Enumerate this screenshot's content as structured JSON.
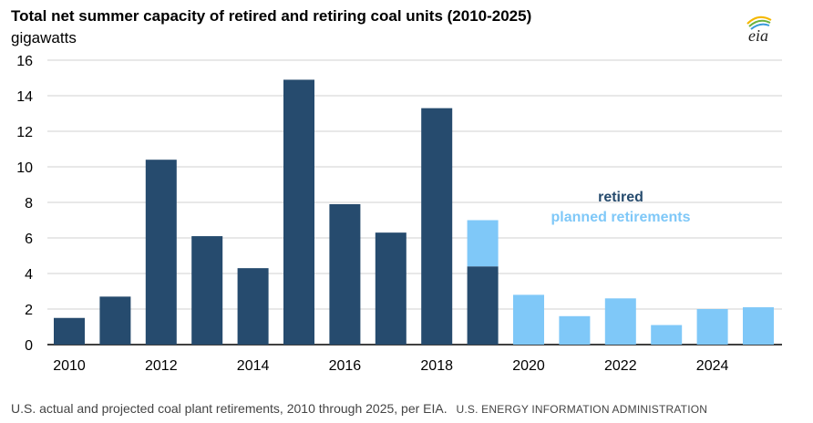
{
  "header": {
    "title": "Total net summer capacity of retired and retiring coal units (2010-2025)",
    "unit": "gigawatts",
    "logo_text": "eia"
  },
  "footer": {
    "caption": "U.S. actual and projected coal plant retirements, 2010 through 2025, per EIA.",
    "source": "U.S. ENERGY INFORMATION ADMINISTRATION"
  },
  "colors": {
    "retired": "#264b6e",
    "planned": "#7fc8f8",
    "grid": "#d0d0d0",
    "logo_arc_1": "#f5b800",
    "logo_arc_2": "#6cb33f",
    "logo_arc_3": "#3a9bd9"
  },
  "chart_data": {
    "type": "bar",
    "stacked": true,
    "categories": [
      "2010",
      "2011",
      "2012",
      "2013",
      "2014",
      "2015",
      "2016",
      "2017",
      "2018",
      "2019",
      "2020",
      "2021",
      "2022",
      "2023",
      "2024",
      "2025"
    ],
    "tick_labels_x": [
      "2010",
      "2012",
      "2014",
      "2016",
      "2018",
      "2020",
      "2022",
      "2024"
    ],
    "tick_labels_y": [
      "0",
      "2",
      "4",
      "6",
      "8",
      "10",
      "12",
      "14",
      "16"
    ],
    "ylim": [
      0,
      16
    ],
    "grid": true,
    "legend_position": "center-right",
    "series": [
      {
        "name": "retired",
        "values": [
          1.5,
          2.7,
          10.4,
          6.1,
          4.3,
          14.9,
          7.9,
          6.3,
          13.3,
          4.4,
          0,
          0,
          0,
          0,
          0,
          0
        ]
      },
      {
        "name": "planned retirements",
        "values": [
          0,
          0,
          0,
          0,
          0,
          0,
          0,
          0,
          0,
          2.6,
          2.8,
          1.6,
          2.6,
          1.1,
          2.0,
          2.1
        ]
      }
    ]
  }
}
